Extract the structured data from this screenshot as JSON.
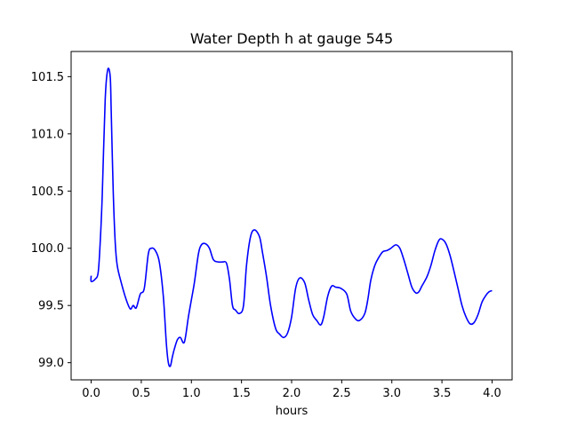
{
  "chart_data": {
    "type": "line",
    "title": "Water Depth h at gauge 545",
    "xlabel": "hours",
    "ylabel": "",
    "xlim": [
      -0.2,
      4.2
    ],
    "ylim": [
      98.85,
      101.72
    ],
    "x_ticks": [
      0.0,
      0.5,
      1.0,
      1.5,
      2.0,
      2.5,
      3.0,
      3.5,
      4.0
    ],
    "x_tick_labels": [
      "0.0",
      "0.5",
      "1.0",
      "1.5",
      "2.0",
      "2.5",
      "3.0",
      "3.5",
      "4.0"
    ],
    "y_ticks": [
      99.0,
      99.5,
      100.0,
      100.5,
      101.0,
      101.5
    ],
    "y_tick_labels": [
      "99.0",
      "99.5",
      "100.0",
      "100.5",
      "101.0",
      "101.5"
    ],
    "grid": false,
    "legend": "none",
    "series": [
      {
        "color": "#0000ff",
        "x": [
          0.0,
          0.0,
          0.04,
          0.07,
          0.09,
          0.11,
          0.14,
          0.165,
          0.19,
          0.2,
          0.22,
          0.24,
          0.26,
          0.3,
          0.35,
          0.39,
          0.42,
          0.45,
          0.49,
          0.53,
          0.57,
          0.6,
          0.64,
          0.68,
          0.72,
          0.75,
          0.77,
          0.79,
          0.81,
          0.83,
          0.86,
          0.89,
          0.93,
          0.97,
          1.0,
          1.03,
          1.07,
          1.1,
          1.14,
          1.18,
          1.22,
          1.27,
          1.31,
          1.35,
          1.38,
          1.41,
          1.44,
          1.48,
          1.52,
          1.55,
          1.59,
          1.63,
          1.68,
          1.71,
          1.75,
          1.79,
          1.84,
          1.88,
          1.92,
          1.96,
          2.0,
          2.04,
          2.08,
          2.13,
          2.17,
          2.21,
          2.25,
          2.29,
          2.32,
          2.36,
          2.4,
          2.44,
          2.49,
          2.55,
          2.59,
          2.64,
          2.68,
          2.73,
          2.76,
          2.79,
          2.83,
          2.87,
          2.91,
          2.95,
          2.99,
          3.04,
          3.08,
          3.12,
          3.16,
          3.2,
          3.24,
          3.27,
          3.3,
          3.35,
          3.39,
          3.43,
          3.47,
          3.5,
          3.54,
          3.58,
          3.62,
          3.66,
          3.7,
          3.74,
          3.78,
          3.82,
          3.86,
          3.9,
          3.94,
          3.97,
          4.0
        ],
        "y": [
          99.76,
          99.71,
          99.73,
          99.79,
          100.05,
          100.45,
          101.3,
          101.56,
          101.5,
          101.2,
          100.5,
          100.05,
          99.85,
          99.7,
          99.55,
          99.47,
          99.5,
          99.48,
          99.6,
          99.65,
          99.95,
          100.0,
          99.98,
          99.88,
          99.58,
          99.17,
          99.0,
          98.97,
          99.05,
          99.12,
          99.2,
          99.22,
          99.18,
          99.4,
          99.55,
          99.7,
          99.95,
          100.03,
          100.04,
          100.0,
          99.9,
          99.88,
          99.88,
          99.87,
          99.73,
          99.5,
          99.46,
          99.43,
          99.5,
          99.85,
          100.1,
          100.16,
          100.1,
          99.96,
          99.75,
          99.5,
          99.3,
          99.25,
          99.22,
          99.26,
          99.4,
          99.65,
          99.74,
          99.7,
          99.55,
          99.42,
          99.37,
          99.33,
          99.4,
          99.58,
          99.67,
          99.66,
          99.65,
          99.6,
          99.45,
          99.38,
          99.37,
          99.43,
          99.55,
          99.72,
          99.85,
          99.92,
          99.97,
          99.98,
          100.0,
          100.03,
          100.0,
          99.9,
          99.78,
          99.66,
          99.61,
          99.62,
          99.67,
          99.75,
          99.85,
          99.98,
          100.07,
          100.08,
          100.04,
          99.94,
          99.8,
          99.65,
          99.5,
          99.4,
          99.34,
          99.35,
          99.42,
          99.53,
          99.59,
          99.62,
          99.63
        ]
      }
    ]
  }
}
